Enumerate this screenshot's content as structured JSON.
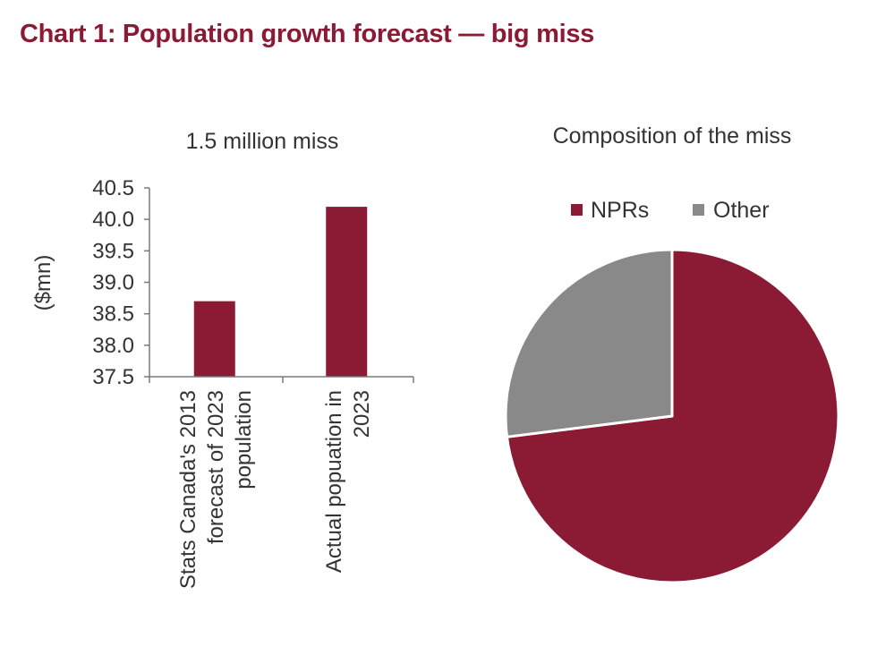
{
  "title": "Chart 1: Population growth forecast — big miss",
  "chart_data": [
    {
      "type": "bar",
      "title": "1.5 million miss",
      "ylabel": "($mn)",
      "xlabel": "",
      "ylim": [
        37.5,
        40.5
      ],
      "yticks": [
        "40.5",
        "40.0",
        "39.5",
        "39.0",
        "38.5",
        "38.0",
        "37.5"
      ],
      "categories": [
        [
          "Stats Canada's 2013",
          "forecast of 2023",
          "population"
        ],
        [
          "Actual popuation in",
          "2023"
        ]
      ],
      "values": [
        38.7,
        40.2
      ],
      "color": "#8b1a35",
      "grid": false
    },
    {
      "type": "pie",
      "title": "Composition of the miss",
      "labels": [
        "NPRs",
        "Other"
      ],
      "values": [
        73,
        27
      ],
      "colors": [
        "#8b1a35",
        "#898989"
      ],
      "legend": "top"
    }
  ]
}
